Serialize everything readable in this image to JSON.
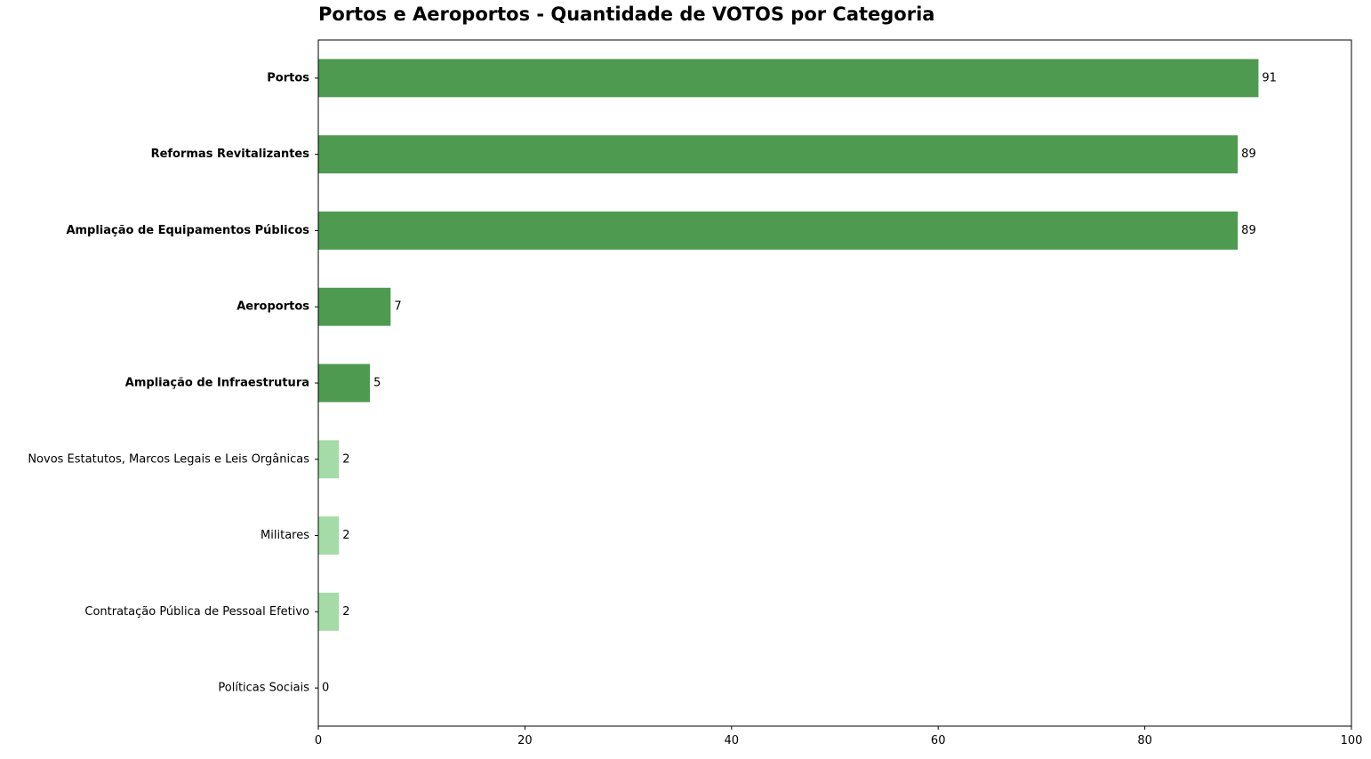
{
  "chart_data": {
    "type": "bar",
    "orientation": "horizontal",
    "title": "Portos e Aeroportos - Quantidade de VOTOS por Categoria",
    "xlabel": "",
    "ylabel": "",
    "xlim": [
      0,
      100
    ],
    "xticks": [
      0,
      20,
      40,
      60,
      80,
      100
    ],
    "grid": false,
    "categories": [
      "Portos",
      "Reformas Revitalizantes",
      "Ampliação de Equipamentos Públicos",
      "Aeroportos",
      "Ampliação de Infraestrutura",
      "Novos Estatutos, Marcos Legais e Leis Orgânicas",
      "Militares",
      "Contratação Pública de Pessoal Efetivo",
      "Políticas Sociais"
    ],
    "values": [
      91,
      89,
      89,
      7,
      5,
      2,
      2,
      2,
      0
    ],
    "highlighted": [
      true,
      true,
      true,
      true,
      true,
      false,
      false,
      false,
      false
    ],
    "colors": {
      "highlight": "#4e9a51",
      "normal": "#a5dba6"
    }
  }
}
